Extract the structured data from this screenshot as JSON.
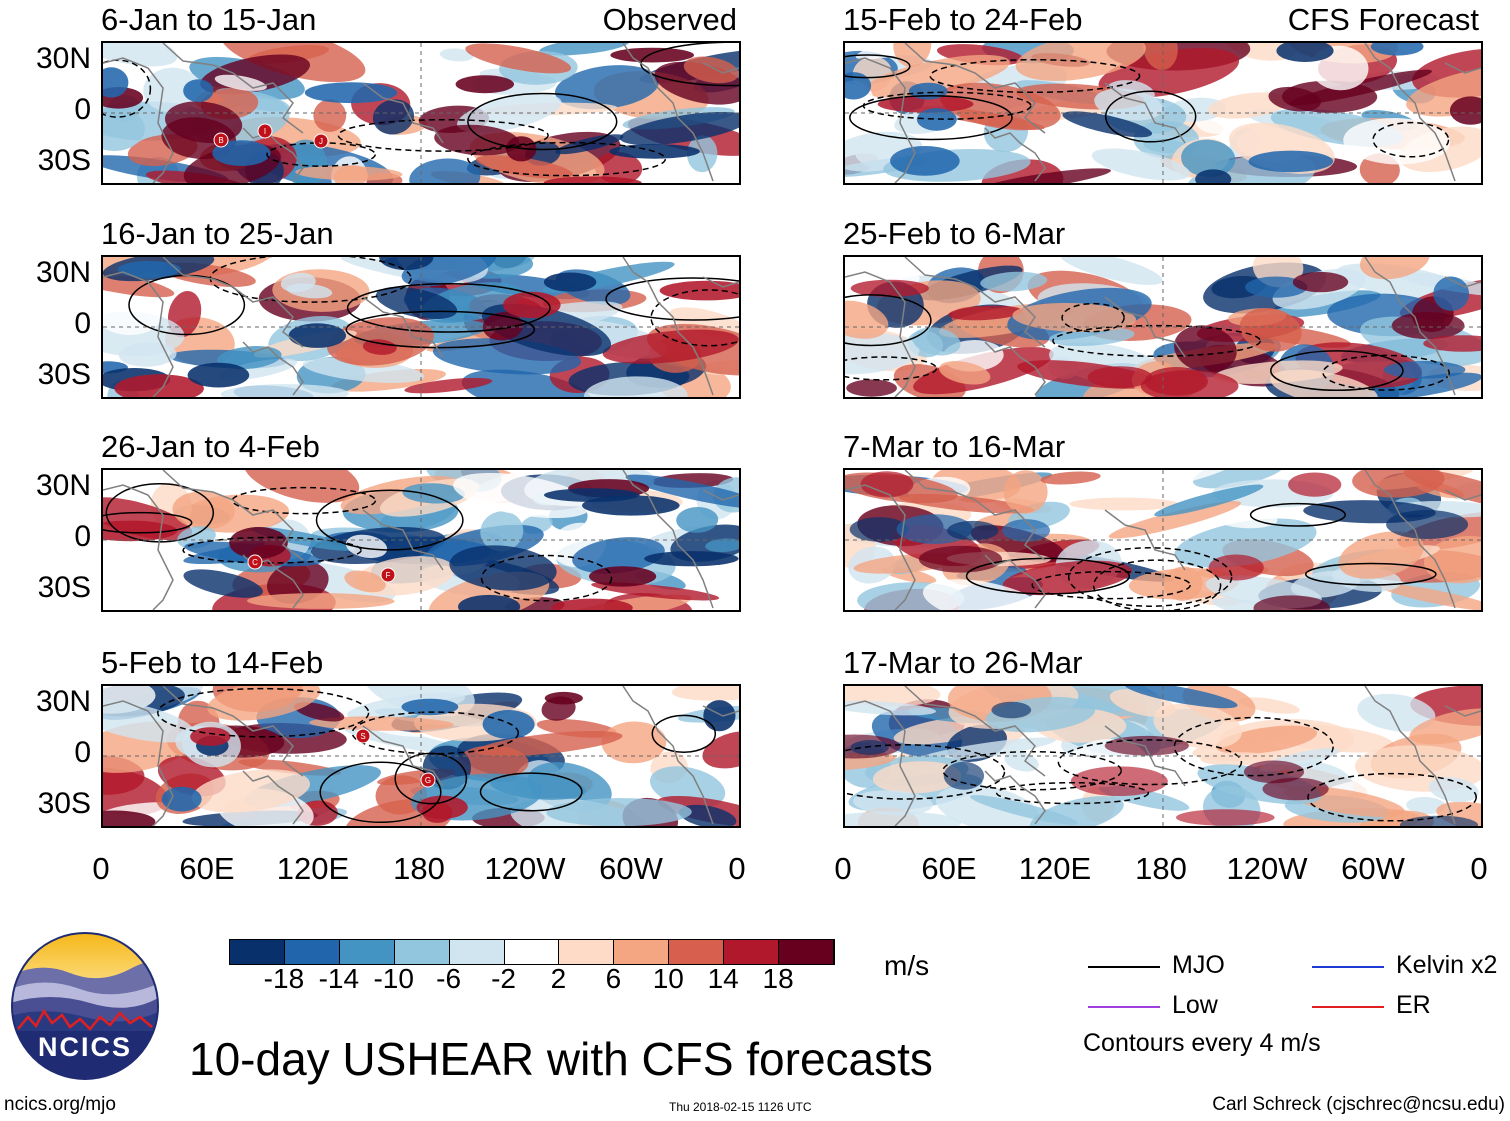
{
  "chart_data": {
    "type": "heatmap",
    "title": "10-day USHEAR with CFS forecasts",
    "variable": "USHEAR",
    "units": "m/s",
    "columns": [
      {
        "label": "Observed",
        "panels": [
          "6-Jan to 15-Jan",
          "16-Jan to 25-Jan",
          "26-Jan to 4-Feb",
          "5-Feb to 14-Feb"
        ]
      },
      {
        "label": "CFS Forecast",
        "panels": [
          "15-Feb to 24-Feb",
          "25-Feb to 6-Mar",
          "7-Mar to 16-Mar",
          "17-Mar to 26-Mar"
        ]
      }
    ],
    "y_tick_labels": [
      "30N",
      "0",
      "30S"
    ],
    "x_tick_labels": [
      "0",
      "60E",
      "120E",
      "180",
      "120W",
      "60W",
      "0"
    ],
    "longitude_range": [
      0,
      360
    ],
    "latitude_range": [
      -40,
      40
    ],
    "colorbar": {
      "tick_labels": [
        "-18",
        "-14",
        "-10",
        "-6",
        "-2",
        "2",
        "6",
        "10",
        "14",
        "18"
      ],
      "colors": [
        "#08306b",
        "#2166ac",
        "#4393c3",
        "#92c5de",
        "#d1e5f0",
        "#ffffff",
        "#fddbc7",
        "#f4a582",
        "#d6604d",
        "#b2182b",
        "#67001f"
      ]
    },
    "legend": [
      {
        "label": "MJO",
        "color": "#000000"
      },
      {
        "label": "Kelvin x2",
        "color": "#1f3bd6"
      },
      {
        "label": "Low",
        "color": "#a040e0"
      },
      {
        "label": "ER",
        "color": "#e02020"
      }
    ],
    "contour_note": "Contours every 4 m/s",
    "storm_markers": [
      {
        "panel": 0,
        "labels": [
          "B",
          "I",
          "J"
        ]
      },
      {
        "panel": 2,
        "labels": [
          "C",
          "F"
        ]
      },
      {
        "panel": 3,
        "labels": [
          "S",
          "G"
        ]
      }
    ]
  },
  "footer": {
    "left": "ncics.org/mjo",
    "center": "Thu 2018-02-15 1126 UTC",
    "right": "Carl Schreck (cjschrec@ncsu.edu)"
  },
  "logo_text": "NCICS"
}
